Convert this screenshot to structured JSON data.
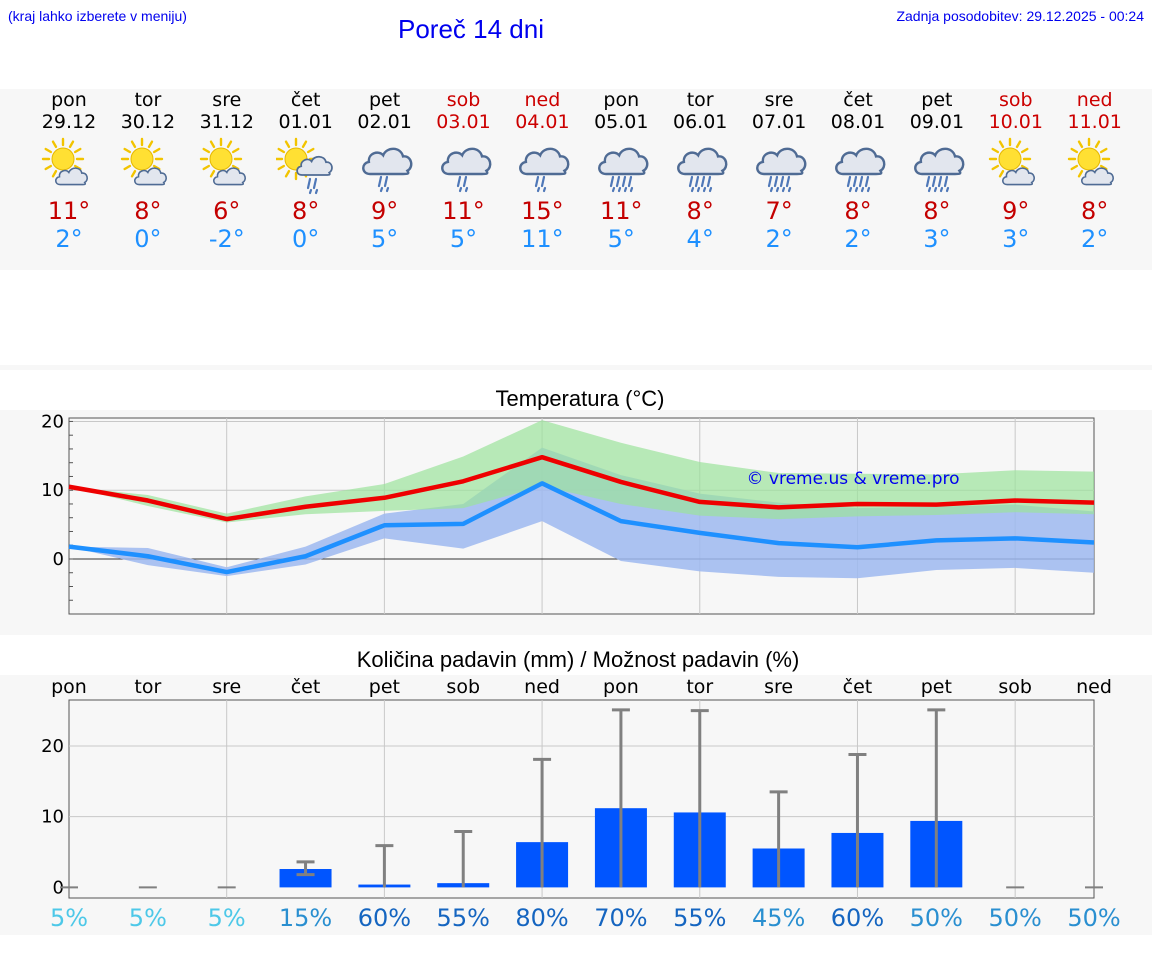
{
  "header": {
    "menu_hint": "(kraj lahko izberete v meniju)",
    "title": "Poreč 14 dni",
    "updated": "Zadnja posodobitev: 29.12.2025 - 00:24"
  },
  "days": [
    {
      "name": "pon",
      "date": "29.12",
      "weekend": false,
      "icon": "sun-cloud-icon",
      "tmax": "11°",
      "tmin": "2°"
    },
    {
      "name": "tor",
      "date": "30.12",
      "weekend": false,
      "icon": "sun-cloud-icon",
      "tmax": "8°",
      "tmin": "0°"
    },
    {
      "name": "sre",
      "date": "31.12",
      "weekend": false,
      "icon": "sun-cloud-icon",
      "tmax": "6°",
      "tmin": "-2°"
    },
    {
      "name": "čet",
      "date": "01.01",
      "weekend": false,
      "icon": "sun-rain-icon",
      "tmax": "8°",
      "tmin": "0°"
    },
    {
      "name": "pet",
      "date": "02.01",
      "weekend": false,
      "icon": "cloud-light-rain-icon",
      "tmax": "9°",
      "tmin": "5°"
    },
    {
      "name": "sob",
      "date": "03.01",
      "weekend": true,
      "icon": "cloud-light-rain-icon",
      "tmax": "11°",
      "tmin": "5°"
    },
    {
      "name": "ned",
      "date": "04.01",
      "weekend": true,
      "icon": "cloud-light-rain-icon",
      "tmax": "15°",
      "tmin": "11°"
    },
    {
      "name": "pon",
      "date": "05.01",
      "weekend": false,
      "icon": "cloud-rain-icon",
      "tmax": "11°",
      "tmin": "5°"
    },
    {
      "name": "tor",
      "date": "06.01",
      "weekend": false,
      "icon": "cloud-rain-icon",
      "tmax": "8°",
      "tmin": "4°"
    },
    {
      "name": "sre",
      "date": "07.01",
      "weekend": false,
      "icon": "cloud-rain-icon",
      "tmax": "7°",
      "tmin": "2°"
    },
    {
      "name": "čet",
      "date": "08.01",
      "weekend": false,
      "icon": "cloud-rain-icon",
      "tmax": "8°",
      "tmin": "2°"
    },
    {
      "name": "pet",
      "date": "09.01",
      "weekend": false,
      "icon": "cloud-rain-icon",
      "tmax": "8°",
      "tmin": "3°"
    },
    {
      "name": "sob",
      "date": "10.01",
      "weekend": true,
      "icon": "sun-cloud-icon",
      "tmax": "9°",
      "tmin": "3°"
    },
    {
      "name": "ned",
      "date": "11.01",
      "weekend": true,
      "icon": "sun-cloud-icon",
      "tmax": "8°",
      "tmin": "2°"
    }
  ],
  "colors": {
    "max_line": "#ee0000",
    "min_line": "#1e90ff",
    "max_band": "#9be29b",
    "min_band": "#9db9f0",
    "bar": "#0055ff",
    "whisker": "#808080",
    "prob_low": "#4dc8e8",
    "prob_mid": "#2a8fd0",
    "prob_high": "#1565c0"
  },
  "chart_data": [
    {
      "type": "line",
      "title": "Temperatura (°C)",
      "watermark": "© vreme.us & vreme.pro",
      "ylim": [
        -8,
        20.5
      ],
      "yticks": [
        0,
        10,
        20
      ],
      "x": [
        0,
        1,
        2,
        3,
        4,
        5,
        6,
        7,
        8,
        9,
        10,
        11,
        12,
        13
      ],
      "series": [
        {
          "name": "max",
          "values": [
            10.5,
            8.5,
            5.8,
            7.6,
            8.9,
            11.3,
            14.8,
            11.2,
            8.3,
            7.5,
            8.0,
            7.9,
            8.5,
            8.2
          ]
        },
        {
          "name": "min",
          "values": [
            1.8,
            0.4,
            -1.9,
            0.4,
            4.9,
            5.1,
            11.0,
            5.5,
            3.8,
            2.3,
            1.7,
            2.7,
            3.0,
            2.4
          ]
        }
      ],
      "bands": [
        {
          "name": "max_range",
          "upper": [
            10.5,
            9.3,
            6.6,
            9.1,
            10.9,
            14.9,
            20.2,
            16.9,
            14.1,
            12.5,
            12.4,
            12.3,
            12.9,
            12.7
          ],
          "lower": [
            10.5,
            7.7,
            5.3,
            6.5,
            7.0,
            7.4,
            10.6,
            8.0,
            6.3,
            5.8,
            6.2,
            6.4,
            6.8,
            6.5
          ]
        },
        {
          "name": "min_range",
          "upper": [
            1.8,
            1.6,
            -1.2,
            1.8,
            6.6,
            8.0,
            16.2,
            12.2,
            9.5,
            8.2,
            7.4,
            7.6,
            7.9,
            6.9
          ],
          "lower": [
            1.8,
            -0.9,
            -2.5,
            -0.8,
            3.0,
            1.5,
            5.5,
            -0.3,
            -1.8,
            -2.6,
            -2.8,
            -1.6,
            -1.3,
            -2.0
          ]
        }
      ]
    },
    {
      "type": "bar",
      "title": "Količina padavin (mm) / Možnost padavin (%)",
      "ylim": [
        -1.5,
        26.5
      ],
      "yticks": [
        0,
        10,
        20
      ],
      "categories": [
        "pon",
        "tor",
        "sre",
        "čet",
        "pet",
        "sob",
        "ned",
        "pon",
        "tor",
        "sre",
        "čet",
        "pet",
        "sob",
        "ned"
      ],
      "values": [
        0,
        0,
        0,
        2.6,
        0.4,
        0.6,
        6.4,
        11.2,
        10.6,
        5.5,
        7.7,
        9.4,
        0,
        0
      ],
      "err_low": [
        0,
        0,
        0,
        1.8,
        0,
        0,
        0,
        0,
        0,
        0,
        0,
        0,
        0,
        0
      ],
      "err_high": [
        0,
        0,
        0,
        3.6,
        5.9,
        7.9,
        18.1,
        25.1,
        25.0,
        13.5,
        18.8,
        25.1,
        0,
        0
      ],
      "probabilities": [
        "5%",
        "5%",
        "5%",
        "15%",
        "60%",
        "55%",
        "80%",
        "70%",
        "55%",
        "45%",
        "60%",
        "50%",
        "50%",
        "50%"
      ],
      "prob_levels": [
        "low",
        "low",
        "low",
        "mid",
        "high",
        "high",
        "high",
        "high",
        "high",
        "mid",
        "high",
        "mid",
        "mid",
        "mid"
      ]
    }
  ]
}
